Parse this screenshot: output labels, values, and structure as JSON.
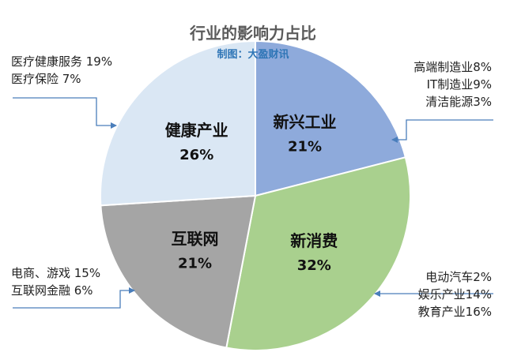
{
  "chart_data": {
    "type": "pie",
    "title": "行业的影响力占比",
    "subtitle": "制图：大盈财讯",
    "slices": [
      {
        "name": "新兴工业",
        "label": "21%",
        "value": 21,
        "color": "#8eaadb"
      },
      {
        "name": "新消费",
        "label": "32%",
        "value": 32,
        "color": "#a9d08e"
      },
      {
        "name": "互联网",
        "label": "21%",
        "value": 21,
        "color": "#a5a5a5"
      },
      {
        "name": "健康产业",
        "label": "26%",
        "value": 26,
        "color": "#dae7f4"
      }
    ],
    "annotations": {
      "health": [
        "医疗健康服务 19%",
        "医疗保险 7%"
      ],
      "industry": [
        "高端制造业8%",
        "IT制造业9%",
        "清洁能源3%"
      ],
      "internet": [
        "电商、游戏 15%",
        "互联网金融 6%"
      ],
      "consumer": [
        "电动汽车2%",
        "娱乐产业14%",
        "教育产业16%"
      ]
    },
    "colors": {
      "arrow": "#4a7ebb",
      "slice_border": "#ffffff",
      "slice_text": "#111111"
    }
  }
}
